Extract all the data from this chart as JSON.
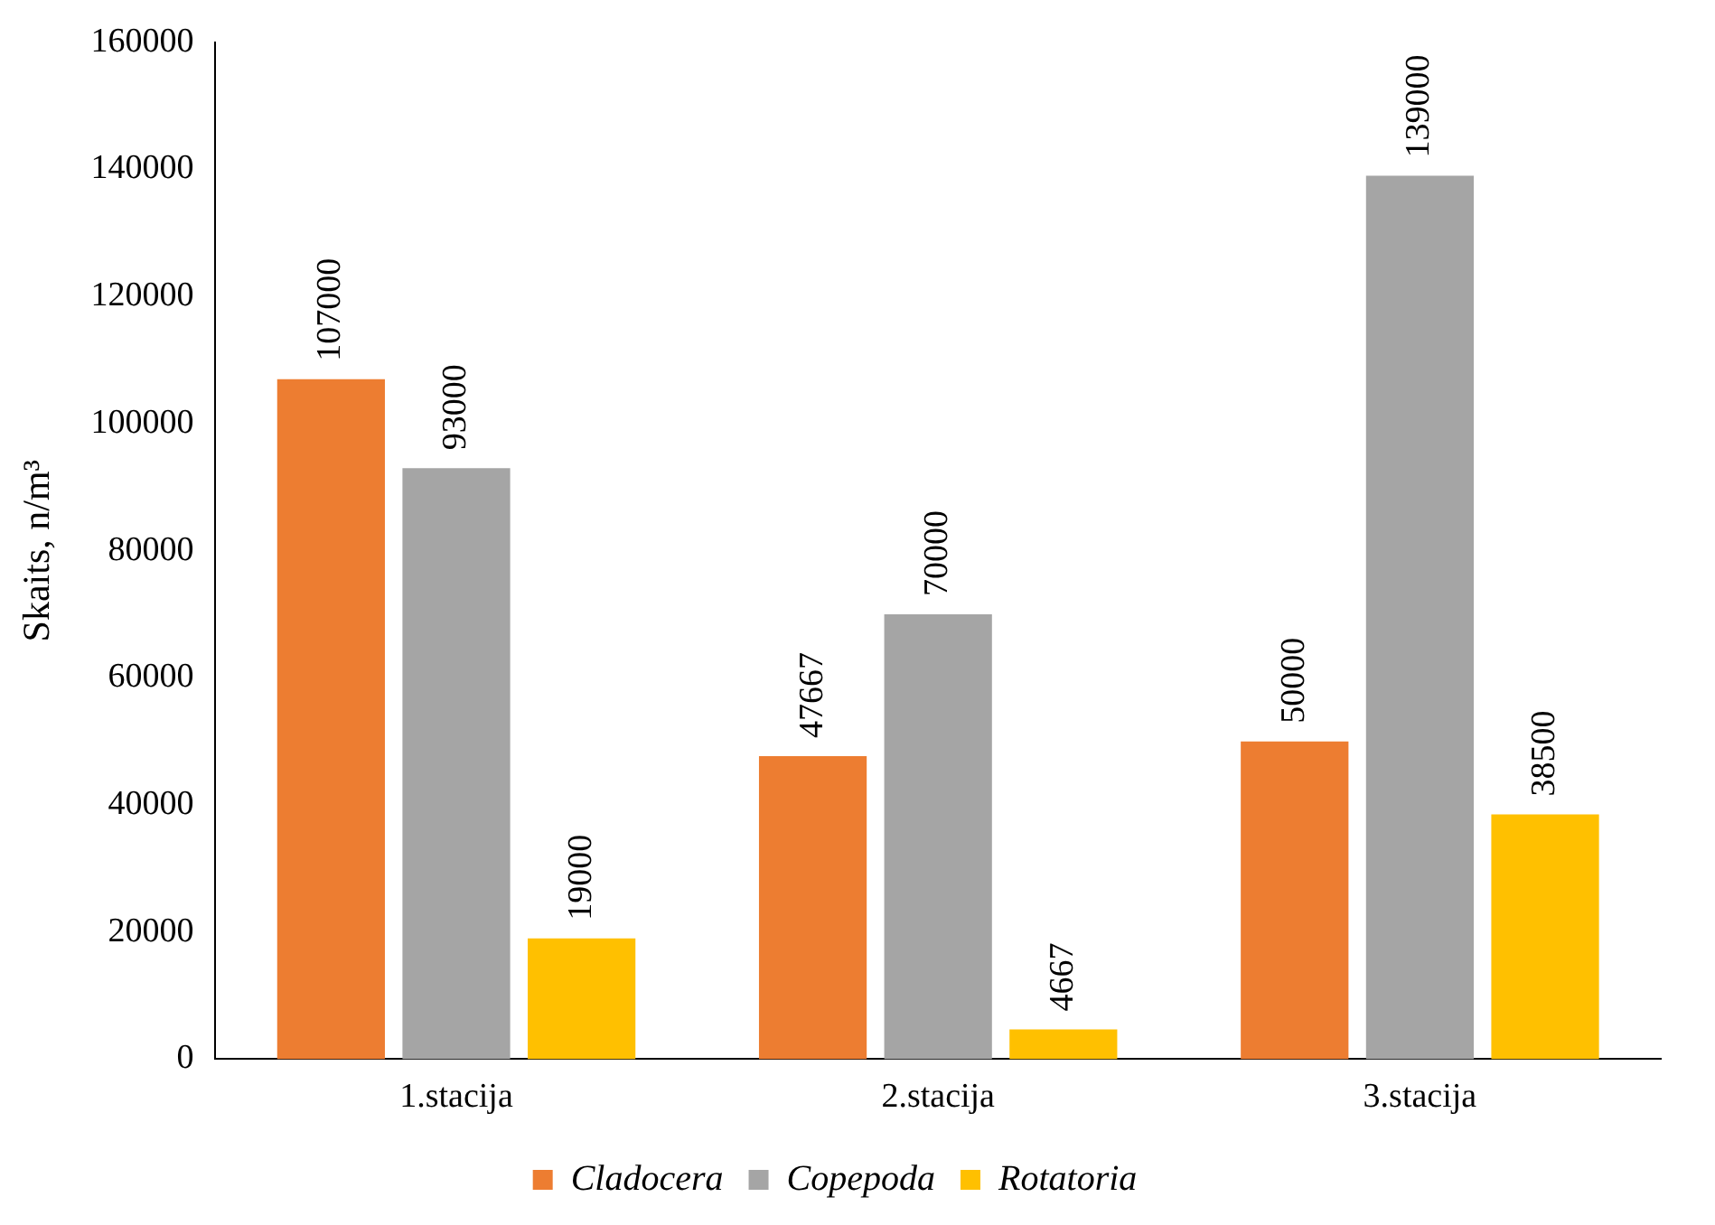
{
  "chart_data": {
    "type": "bar",
    "ylabel": "Skaits, n/m³",
    "categories": [
      "1.stacija",
      "2.stacija",
      "3.stacija"
    ],
    "series": [
      {
        "name": "Cladocera",
        "color": "#ed7d31",
        "values": [
          107000,
          47667,
          50000
        ]
      },
      {
        "name": "Copepoda",
        "color": "#a5a5a5",
        "values": [
          93000,
          70000,
          139000
        ]
      },
      {
        "name": "Rotatoria",
        "color": "#ffc000",
        "values": [
          19000,
          4667,
          38500
        ]
      }
    ],
    "ylim": [
      0,
      160000
    ],
    "yticks": [
      0,
      20000,
      40000,
      60000,
      80000,
      100000,
      120000,
      140000,
      160000
    ],
    "grid": false,
    "legend": "bottom",
    "data_labels": true
  }
}
